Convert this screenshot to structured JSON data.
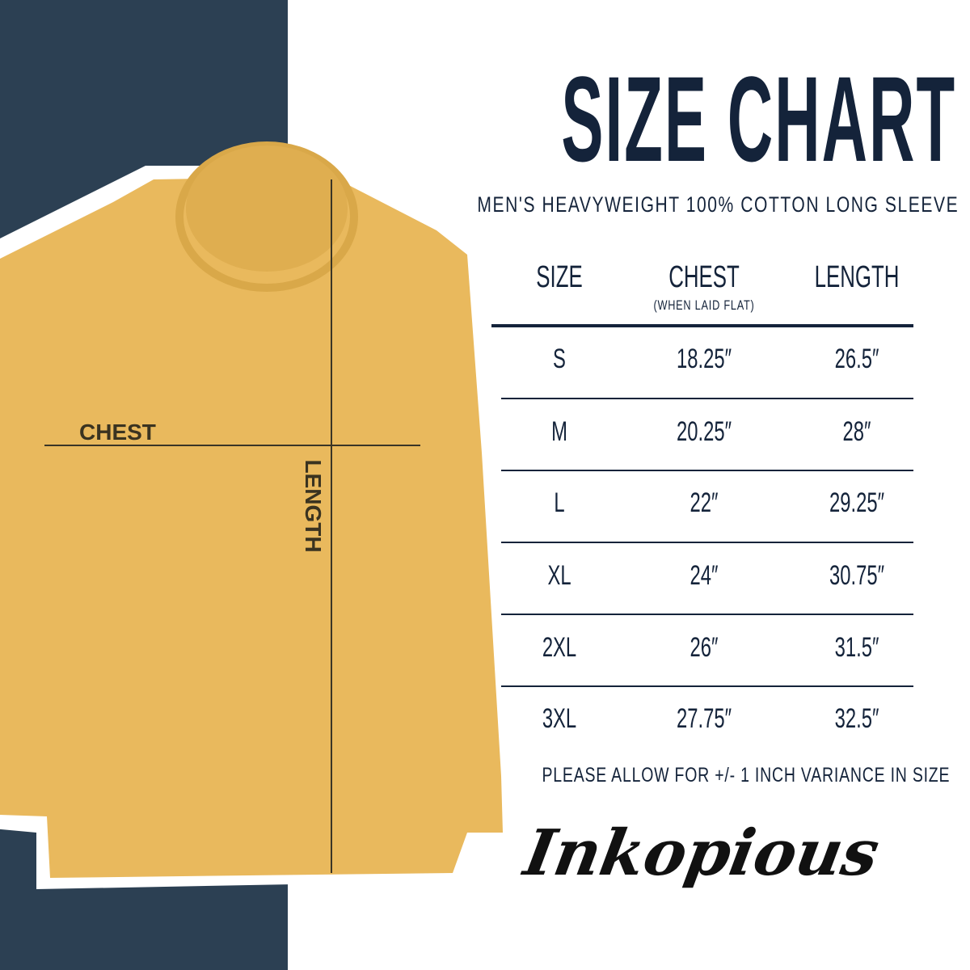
{
  "title": "SIZE CHART",
  "subtitle": "MEN'S HEAVYWEIGHT 100% COTTON LONG SLEEVE",
  "colors": {
    "navy": "#2c4053",
    "text": "#14233a",
    "shirt": "#e9b95d"
  },
  "diagram": {
    "chest_label": "CHEST",
    "length_label": "LENGTH"
  },
  "table": {
    "headers": [
      "SIZE",
      "CHEST",
      "LENGTH"
    ],
    "chest_note": "(WHEN LAID FLAT)",
    "rows": [
      [
        "S",
        "18.25″",
        "26.5″"
      ],
      [
        "M",
        "20.25″",
        "28″"
      ],
      [
        "L",
        "22″",
        "29.25″"
      ],
      [
        "XL",
        "24″",
        "30.75″"
      ],
      [
        "2XL",
        "26″",
        "31.5″"
      ],
      [
        "3XL",
        "27.75″",
        "32.5″"
      ]
    ]
  },
  "note": "PLEASE ALLOW FOR +/- 1 INCH VARIANCE IN SIZE",
  "brand": "Inkopious"
}
